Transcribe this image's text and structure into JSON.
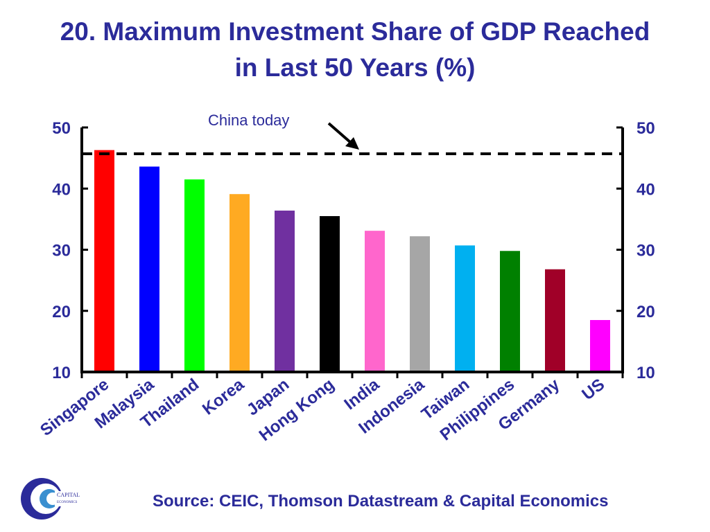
{
  "title": {
    "line1": "20. Maximum Investment Share of GDP Reached",
    "line2": "in Last 50 Years (%)"
  },
  "annotation": {
    "text": "China today",
    "value": 45.7
  },
  "source": "Source: CEIC, Thomson Datastream & Capital Economics",
  "logo": {
    "text": "CAPITAL ECONOMICS"
  },
  "chart_data": {
    "type": "bar",
    "categories": [
      "Singapore",
      "Malaysia",
      "Thailand",
      "Korea",
      "Japan",
      "Hong Kong",
      "India",
      "Indonesia",
      "Taiwan",
      "Philippines",
      "Germany",
      "US"
    ],
    "values": [
      46.3,
      43.6,
      41.5,
      39.1,
      36.4,
      35.5,
      33.1,
      32.2,
      30.7,
      29.8,
      26.8,
      18.5
    ],
    "colors": [
      "#ff0000",
      "#0000ff",
      "#00ff00",
      "#ffaa22",
      "#7030a0",
      "#000000",
      "#ff66cc",
      "#a6a6a6",
      "#00b0f0",
      "#008000",
      "#a00028",
      "#ff00ff"
    ],
    "ylim": [
      10,
      50
    ],
    "yticks": [
      10,
      20,
      30,
      40,
      50
    ],
    "axis_color": "#000000",
    "label_color": "#2b2b9a",
    "grid": false,
    "dual_y_axis": true,
    "reference_line": {
      "label": "China today",
      "value": 45.7,
      "style": "dashed"
    }
  }
}
